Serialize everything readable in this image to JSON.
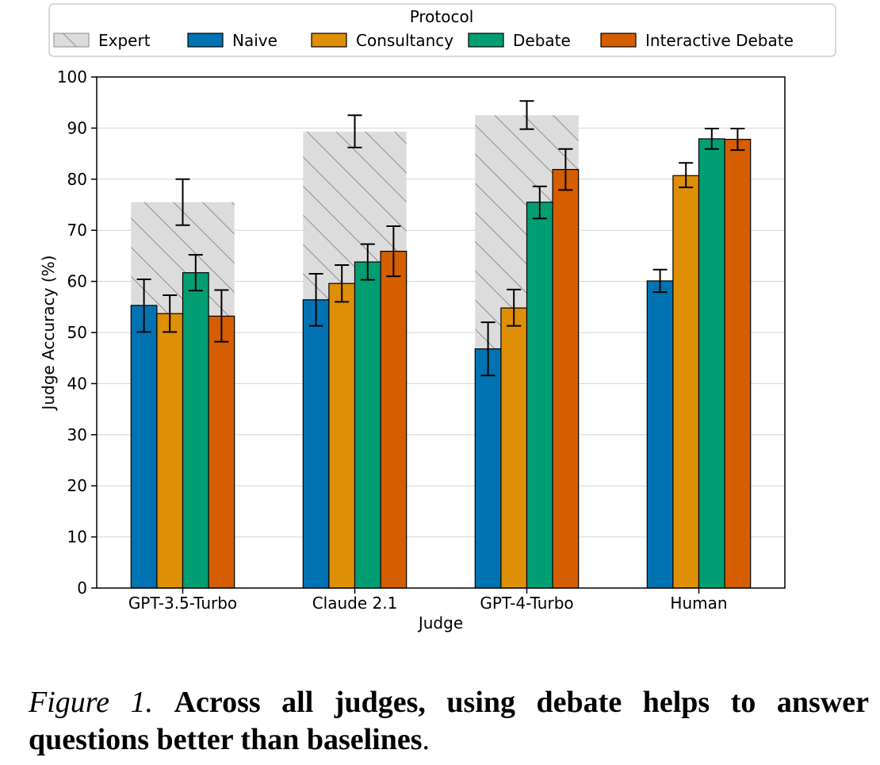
{
  "chart_data": {
    "type": "bar",
    "title": "",
    "xlabel": "Judge",
    "ylabel": "Judge Accuracy (%)",
    "ylim": [
      0,
      100
    ],
    "yticks": [
      0,
      10,
      20,
      30,
      40,
      50,
      60,
      70,
      80,
      90,
      100
    ],
    "grid": "horizontal",
    "legend_title": "Protocol",
    "legend_position": "top",
    "categories": [
      "GPT-3.5-Turbo",
      "Claude 2.1",
      "GPT-4-Turbo",
      "Human"
    ],
    "background_series": {
      "name": "Expert",
      "style": "hatched",
      "color": "#dcdcdc",
      "values": [
        75.5,
        89.3,
        92.5,
        null
      ],
      "errors": [
        [
          71.0,
          80.0
        ],
        [
          86.2,
          92.5
        ],
        [
          89.8,
          95.3
        ],
        null
      ]
    },
    "series": [
      {
        "name": "Naive",
        "color": "#0173b2",
        "values": [
          55.3,
          56.4,
          46.8,
          60.1
        ],
        "errors": [
          [
            50.1,
            60.4
          ],
          [
            51.3,
            61.5
          ],
          [
            41.6,
            52.0
          ],
          [
            57.9,
            62.3
          ]
        ]
      },
      {
        "name": "Consultancy",
        "color": "#de8f05",
        "values": [
          53.7,
          59.6,
          54.8,
          80.7
        ],
        "errors": [
          [
            50.1,
            57.3
          ],
          [
            56.0,
            63.2
          ],
          [
            51.3,
            58.4
          ],
          [
            78.4,
            83.2
          ]
        ]
      },
      {
        "name": "Debate",
        "color": "#029e73",
        "values": [
          61.7,
          63.8,
          75.5,
          87.9
        ],
        "errors": [
          [
            58.2,
            65.2
          ],
          [
            60.3,
            67.3
          ],
          [
            72.3,
            78.6
          ],
          [
            85.9,
            89.9
          ]
        ]
      },
      {
        "name": "Interactive Debate",
        "color": "#d55e00",
        "values": [
          53.2,
          65.9,
          81.9,
          87.8
        ],
        "errors": [
          [
            48.2,
            58.3
          ],
          [
            61.0,
            70.8
          ],
          [
            77.9,
            85.9
          ],
          [
            85.7,
            89.9
          ]
        ]
      }
    ]
  },
  "caption": {
    "label": "Figure 1.",
    "text": "Across all judges, using debate helps to answer questions better than baselines"
  }
}
